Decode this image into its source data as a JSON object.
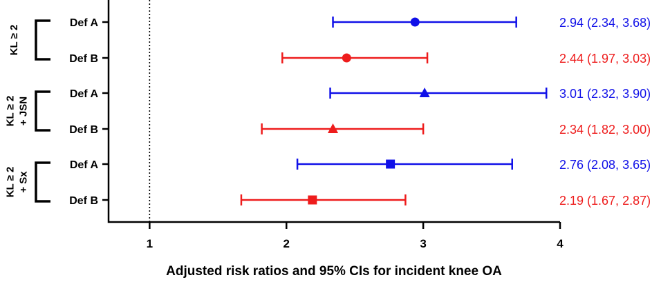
{
  "chart_data": {
    "type": "scatter",
    "xlabel": "Adjusted risk ratios and 95% CIs for incident knee OA",
    "xlim": [
      0.7,
      4.0
    ],
    "x_ticks": [
      "1",
      "2",
      "3",
      "4"
    ],
    "reference_line": 1,
    "groups": [
      {
        "label_lines": [
          "KL ≥ 2"
        ],
        "marker": "circle",
        "rows": [
          {
            "label": "Def A",
            "estimate": 2.94,
            "lower": 2.34,
            "upper": 3.68,
            "annotation": "2.94 (2.34, 3.68)",
            "color": "#1010e8"
          },
          {
            "label": "Def B",
            "estimate": 2.44,
            "lower": 1.97,
            "upper": 3.03,
            "annotation": "2.44 (1.97, 3.03)",
            "color": "#ee1c1c"
          }
        ]
      },
      {
        "label_lines": [
          "KL ≥ 2",
          "+ JSN"
        ],
        "marker": "triangle",
        "rows": [
          {
            "label": "Def A",
            "estimate": 3.01,
            "lower": 2.32,
            "upper": 3.9,
            "annotation": "3.01 (2.32, 3.90)",
            "color": "#1010e8"
          },
          {
            "label": "Def B",
            "estimate": 2.34,
            "lower": 1.82,
            "upper": 3.0,
            "annotation": "2.34 (1.82, 3.00)",
            "color": "#ee1c1c"
          }
        ]
      },
      {
        "label_lines": [
          "KL ≥ 2",
          "+ Sx"
        ],
        "marker": "square",
        "rows": [
          {
            "label": "Def A",
            "estimate": 2.76,
            "lower": 2.08,
            "upper": 3.65,
            "annotation": "2.76 (2.08, 3.65)",
            "color": "#1010e8"
          },
          {
            "label": "Def B",
            "estimate": 2.19,
            "lower": 1.67,
            "upper": 2.87,
            "annotation": "2.19 (1.67, 2.87)",
            "color": "#ee1c1c"
          }
        ]
      }
    ]
  }
}
